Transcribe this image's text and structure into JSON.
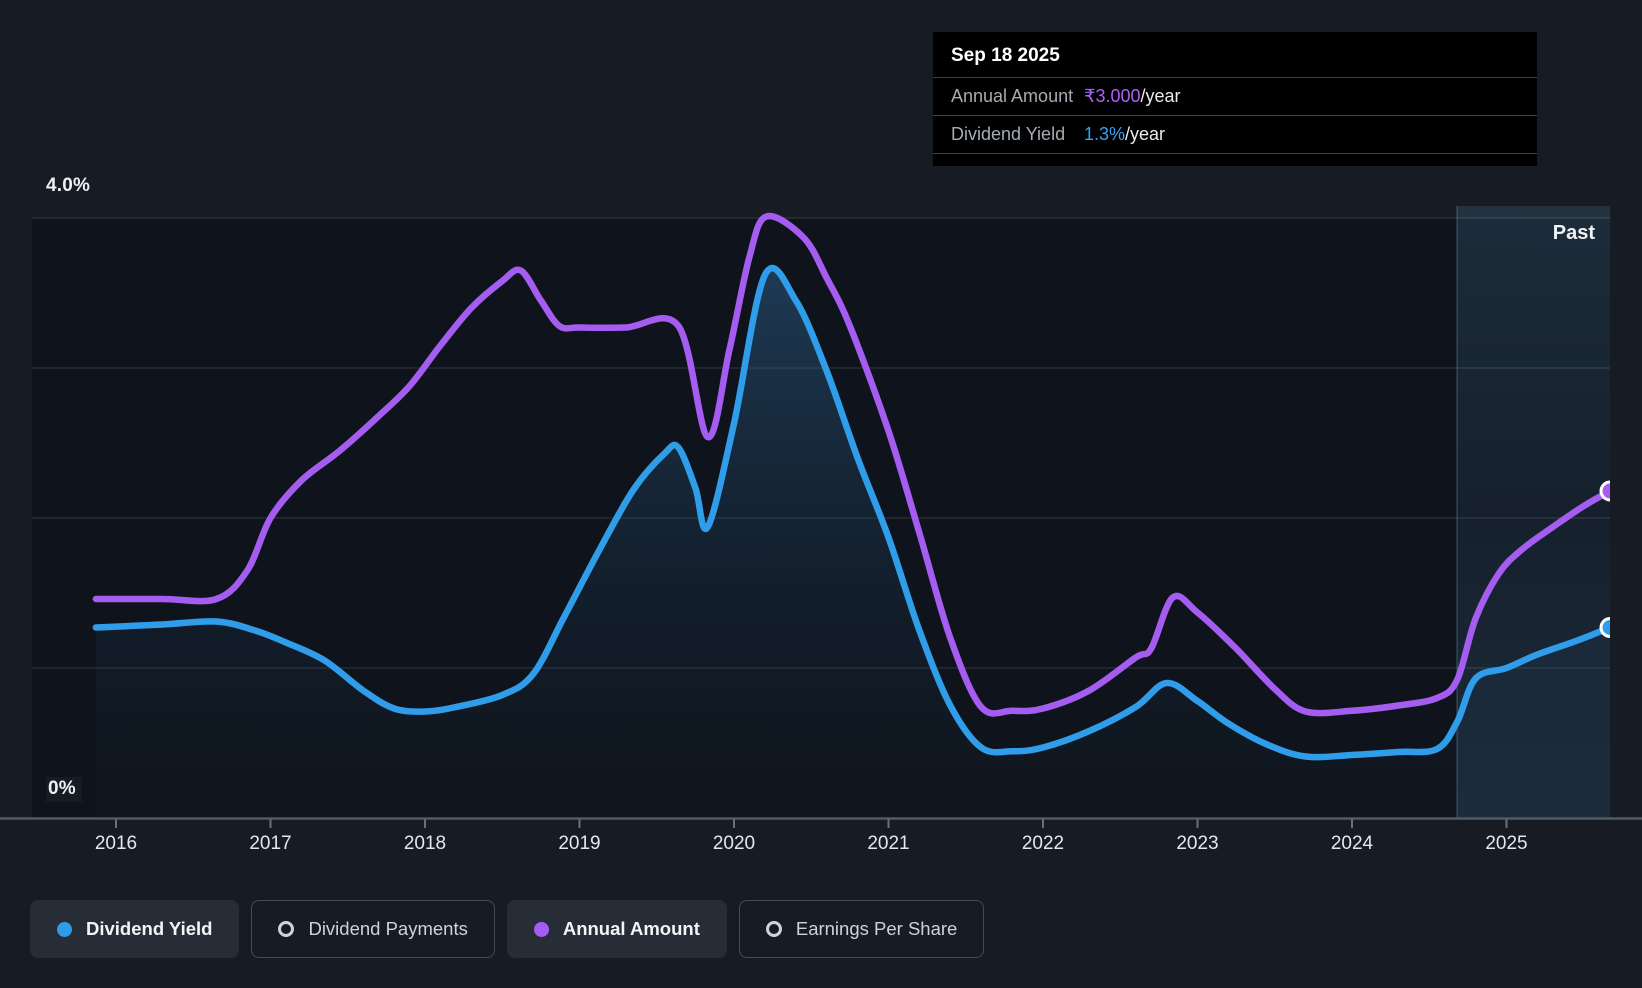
{
  "page": {
    "background": "#171b23"
  },
  "tooltip": {
    "date": "Sep 18 2025",
    "rows": [
      {
        "label": "Annual Amount",
        "value": "₹3.000",
        "suffix": "/year"
      },
      {
        "label": "Dividend Yield",
        "value": "1.3%",
        "suffix": "/year"
      }
    ]
  },
  "past_label": "Past",
  "axis": {
    "y_top_label": "4.0%",
    "y_bottom_label": "0%"
  },
  "legend": [
    {
      "label": "Dividend Yield",
      "state": "active",
      "glyph": "filled-dot",
      "color": "#2e9ce9"
    },
    {
      "label": "Dividend Payments",
      "state": "inactive",
      "glyph": "ring",
      "color": "#45d6c2"
    },
    {
      "label": "Annual Amount",
      "state": "active",
      "glyph": "filled-dot",
      "color": "#a55cf0"
    },
    {
      "label": "Earnings Per Share",
      "state": "inactive",
      "glyph": "ring",
      "color": "#cd4a86"
    }
  ],
  "colors": {
    "dividend_yield_line": "#2f9de9",
    "annual_amount_line": "#a55cf0",
    "tooltip_value_purple": "#ae5ff7",
    "tooltip_value_blue": "#37a1f1",
    "gridline": "rgba(255,255,255,0.10)",
    "past_band": "rgba(74,129,172,0.16)",
    "plot_background": "#0f141c"
  },
  "chart_data": {
    "type": "line",
    "title": "Dividend history chart — value on Sep 18 2025: Annual Amount ₹3.000/year, Dividend Yield 1.3%/year",
    "x_axis": {
      "ticks": [
        2016,
        2017,
        2018,
        2019,
        2020,
        2021,
        2022,
        2023,
        2024,
        2025
      ],
      "tick_labels": [
        "2016",
        "2017",
        "2018",
        "2019",
        "2020",
        "2021",
        "2022",
        "2023",
        "2024",
        "2025"
      ],
      "range_years": [
        2015.45,
        2025.72
      ]
    },
    "y_axis": {
      "range_pct": [
        0,
        4
      ],
      "gridlines_pct": [
        4,
        3,
        2,
        1
      ],
      "top_label": "4.0%",
      "bottom_label": "0%",
      "grid": true
    },
    "past_band": {
      "label": "Past",
      "start_year": 2024.68,
      "end_year": 2025.72
    },
    "legend_position": "bottom-left",
    "series": [
      {
        "name": "Dividend Yield",
        "color": "#2f9de9",
        "unit": "percent",
        "filled_area": true,
        "end_value_label": "1.3%/year",
        "points": [
          [
            2015.87,
            1.27
          ],
          [
            2016.3,
            1.29
          ],
          [
            2016.65,
            1.31
          ],
          [
            2016.9,
            1.25
          ],
          [
            2017.1,
            1.17
          ],
          [
            2017.35,
            1.05
          ],
          [
            2017.6,
            0.85
          ],
          [
            2017.8,
            0.73
          ],
          [
            2018.0,
            0.71
          ],
          [
            2018.2,
            0.74
          ],
          [
            2018.5,
            0.82
          ],
          [
            2018.7,
            0.96
          ],
          [
            2018.9,
            1.34
          ],
          [
            2019.13,
            1.79
          ],
          [
            2019.35,
            2.19
          ],
          [
            2019.55,
            2.43
          ],
          [
            2019.64,
            2.47
          ],
          [
            2019.75,
            2.2
          ],
          [
            2019.83,
            1.94
          ],
          [
            2020.0,
            2.63
          ],
          [
            2020.2,
            3.62
          ],
          [
            2020.4,
            3.45
          ],
          [
            2020.6,
            2.98
          ],
          [
            2020.8,
            2.4
          ],
          [
            2021.0,
            1.87
          ],
          [
            2021.2,
            1.25
          ],
          [
            2021.4,
            0.75
          ],
          [
            2021.6,
            0.47
          ],
          [
            2021.8,
            0.445
          ],
          [
            2022.0,
            0.47
          ],
          [
            2022.3,
            0.58
          ],
          [
            2022.6,
            0.74
          ],
          [
            2022.8,
            0.9
          ],
          [
            2023.0,
            0.78
          ],
          [
            2023.2,
            0.63
          ],
          [
            2023.45,
            0.49
          ],
          [
            2023.7,
            0.41
          ],
          [
            2024.0,
            0.42
          ],
          [
            2024.3,
            0.44
          ],
          [
            2024.55,
            0.46
          ],
          [
            2024.68,
            0.64
          ],
          [
            2024.8,
            0.93
          ],
          [
            2025.0,
            1.0
          ],
          [
            2025.2,
            1.09
          ],
          [
            2025.45,
            1.18
          ],
          [
            2025.67,
            1.27
          ]
        ]
      },
      {
        "name": "Annual Amount",
        "color": "#a55cf0",
        "unit": "currency-INR (hidden scale)",
        "filled_area": false,
        "end_value_label": "₹3.000/year",
        "note": "plotted on a hidden currency axis; point values below are positions as drawn on the percent axis",
        "points": [
          [
            2015.87,
            1.46
          ],
          [
            2016.3,
            1.46
          ],
          [
            2016.65,
            1.46
          ],
          [
            2016.85,
            1.65
          ],
          [
            2017.0,
            2.0
          ],
          [
            2017.2,
            2.25
          ],
          [
            2017.45,
            2.45
          ],
          [
            2017.7,
            2.68
          ],
          [
            2017.9,
            2.88
          ],
          [
            2018.1,
            3.15
          ],
          [
            2018.3,
            3.4
          ],
          [
            2018.5,
            3.58
          ],
          [
            2018.62,
            3.65
          ],
          [
            2018.75,
            3.45
          ],
          [
            2018.87,
            3.28
          ],
          [
            2019.0,
            3.27
          ],
          [
            2019.3,
            3.27
          ],
          [
            2019.64,
            3.28
          ],
          [
            2019.83,
            2.54
          ],
          [
            2019.97,
            3.12
          ],
          [
            2020.1,
            3.74
          ],
          [
            2020.21,
            4.01
          ],
          [
            2020.45,
            3.87
          ],
          [
            2020.6,
            3.6
          ],
          [
            2020.75,
            3.28
          ],
          [
            2021.0,
            2.58
          ],
          [
            2021.2,
            1.9
          ],
          [
            2021.4,
            1.2
          ],
          [
            2021.6,
            0.74
          ],
          [
            2021.8,
            0.715
          ],
          [
            2022.0,
            0.73
          ],
          [
            2022.3,
            0.85
          ],
          [
            2022.6,
            1.07
          ],
          [
            2022.7,
            1.13
          ],
          [
            2022.84,
            1.47
          ],
          [
            2023.0,
            1.37
          ],
          [
            2023.25,
            1.13
          ],
          [
            2023.5,
            0.86
          ],
          [
            2023.7,
            0.71
          ],
          [
            2024.0,
            0.715
          ],
          [
            2024.3,
            0.75
          ],
          [
            2024.55,
            0.8
          ],
          [
            2024.68,
            0.92
          ],
          [
            2024.8,
            1.33
          ],
          [
            2024.95,
            1.63
          ],
          [
            2025.1,
            1.79
          ],
          [
            2025.3,
            1.94
          ],
          [
            2025.5,
            2.08
          ],
          [
            2025.67,
            2.18
          ]
        ]
      }
    ],
    "inactive_series": [
      "Dividend Payments",
      "Earnings Per Share"
    ]
  }
}
